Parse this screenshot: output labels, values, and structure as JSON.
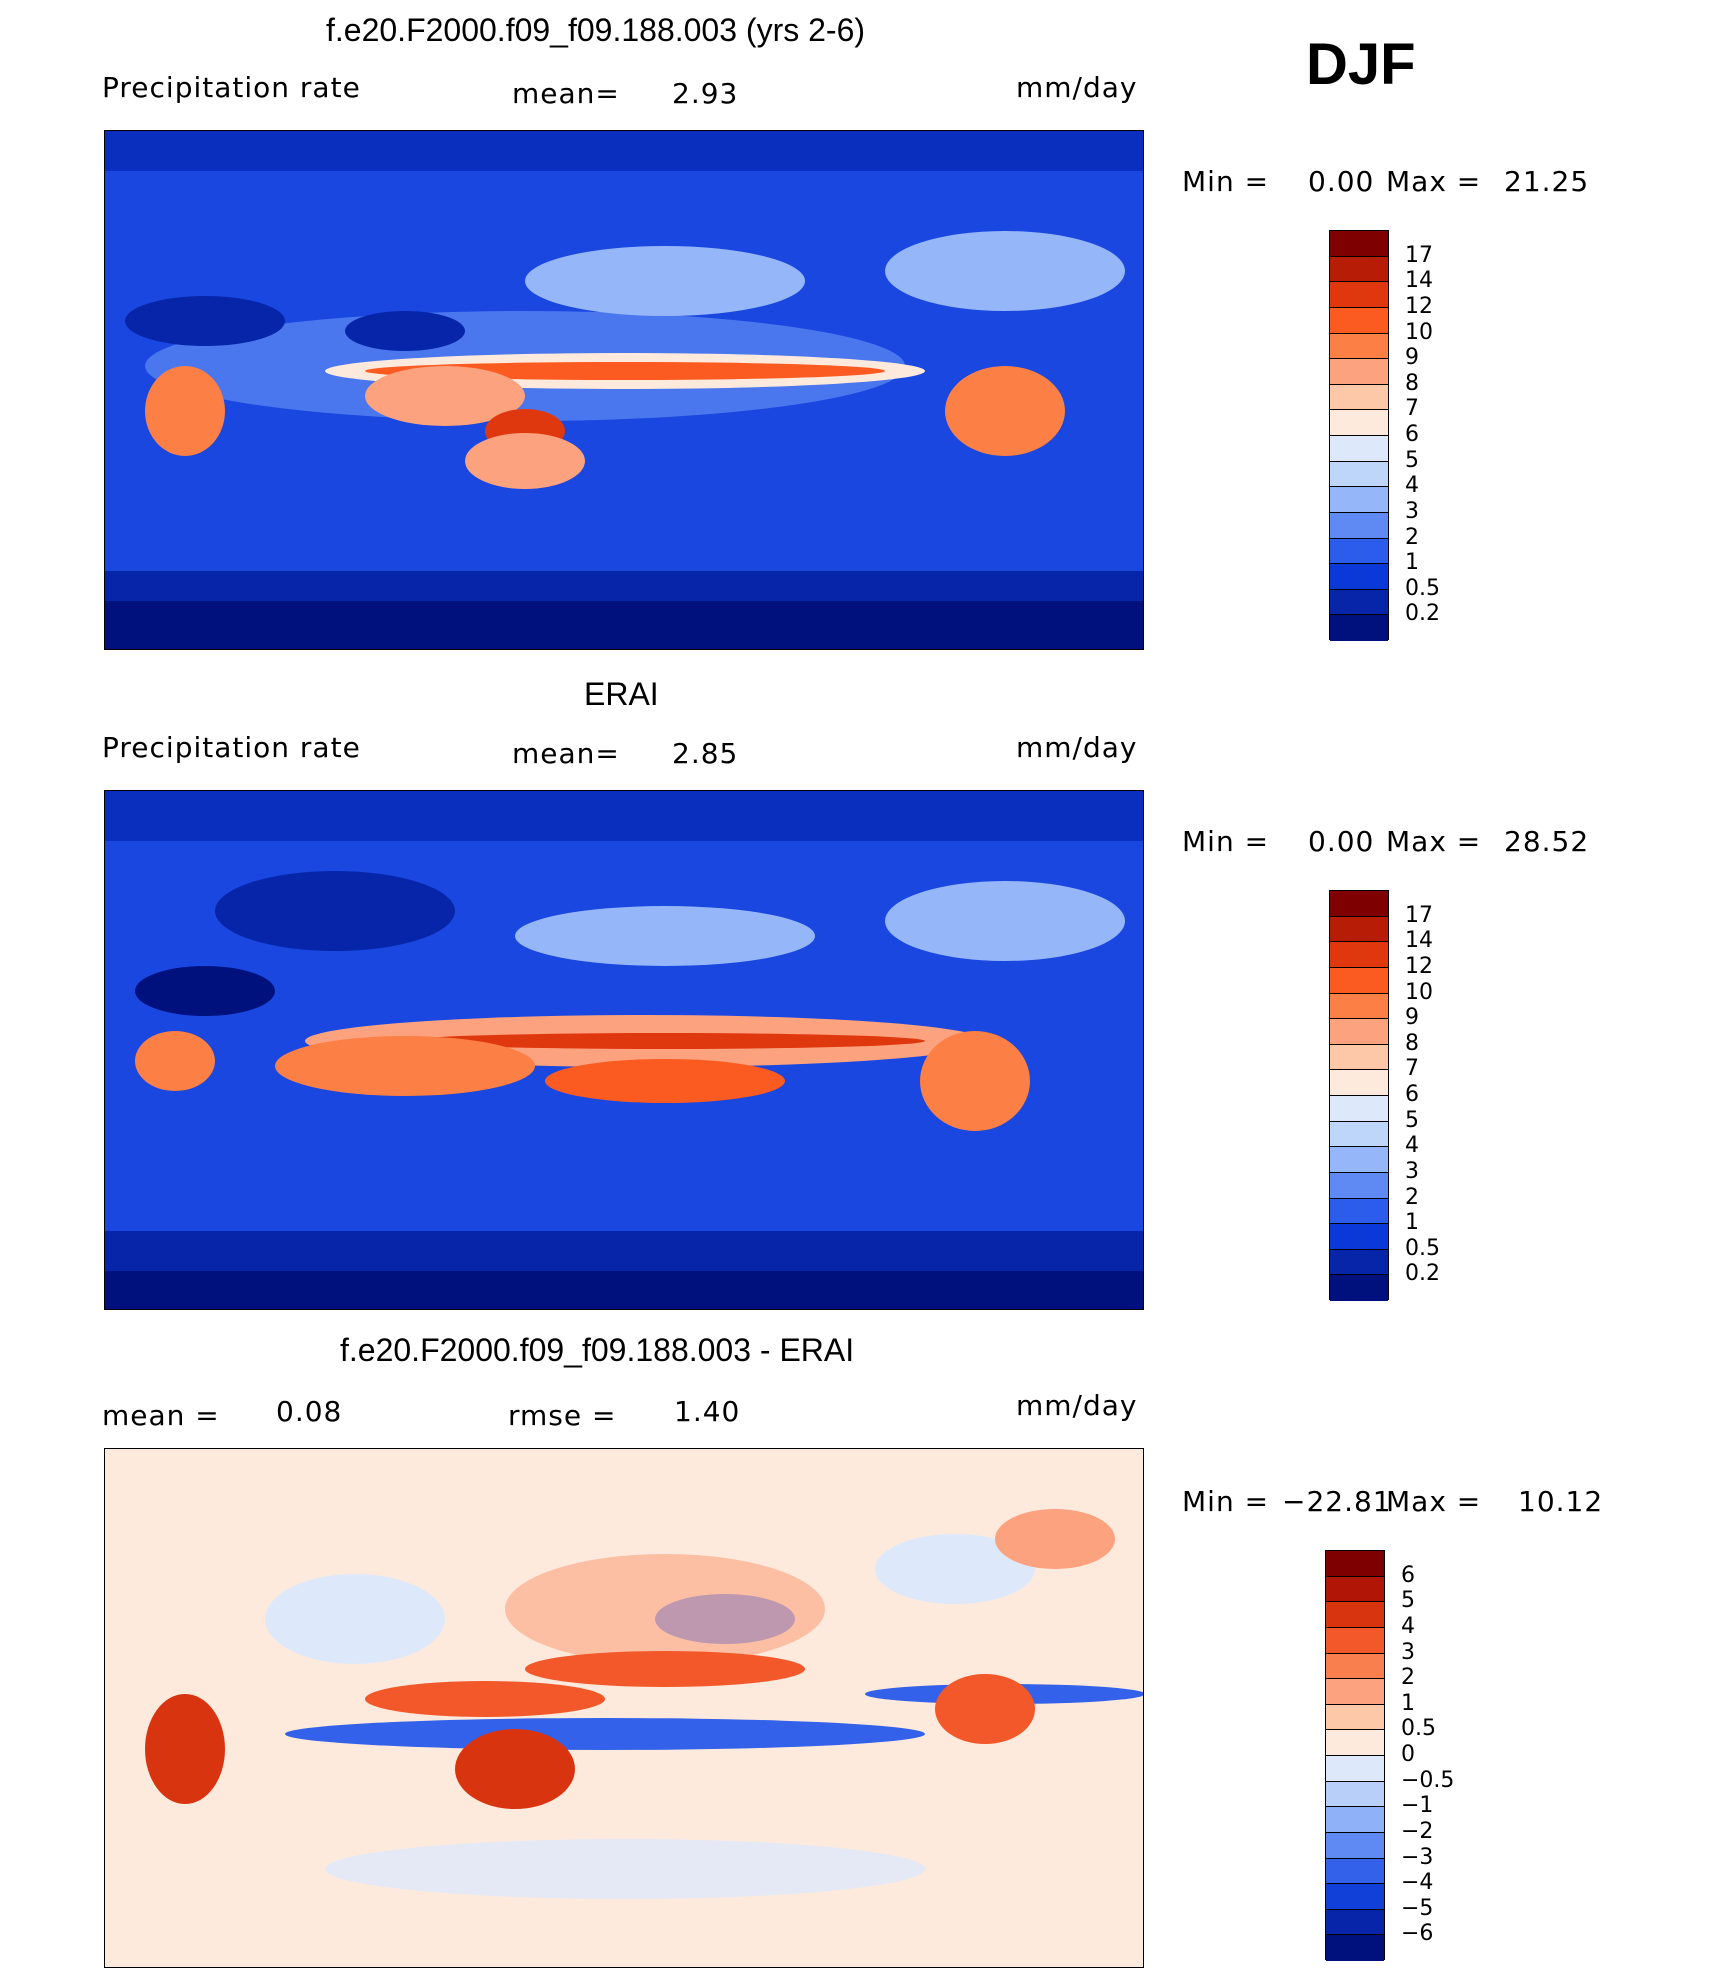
{
  "season": "DJF",
  "panels": [
    {
      "id": "model",
      "title": "f.e20.F2000.f09_f09.188.003 (yrs 2-6)",
      "left_label": "Precipitation  rate",
      "center_label": "mean=",
      "center_value": "2.93",
      "units": "mm/day",
      "min_label": "Min  =",
      "min_value": "0.00",
      "max_label": "Max  =",
      "max_value": "21.25",
      "colorbar": {
        "labels": [
          "17",
          "14",
          "12",
          "10",
          "9",
          "8",
          "7",
          "6",
          "5",
          "4",
          "3",
          "2",
          "1",
          "0.5",
          "0.2"
        ],
        "colors": [
          "#7f0000",
          "#b71c07",
          "#e0380e",
          "#fb5a20",
          "#fc7f45",
          "#fca27e",
          "#fdc8a8",
          "#feeadc",
          "#dde9fb",
          "#bfd6fb",
          "#95b6f9",
          "#5f8af4",
          "#2c5cec",
          "#0b39d8",
          "#0625a8",
          "#00107d"
        ]
      }
    },
    {
      "id": "obs",
      "title": "ERAI",
      "left_label": "Precipitation  rate",
      "center_label": "mean=",
      "center_value": "2.85",
      "units": "mm/day",
      "min_label": "Min  =",
      "min_value": "0.00",
      "max_label": "Max  =",
      "max_value": "28.52",
      "colorbar": {
        "labels": [
          "17",
          "14",
          "12",
          "10",
          "9",
          "8",
          "7",
          "6",
          "5",
          "4",
          "3",
          "2",
          "1",
          "0.5",
          "0.2"
        ],
        "colors": [
          "#7f0000",
          "#b71c07",
          "#e0380e",
          "#fb5a20",
          "#fc7f45",
          "#fca27e",
          "#fdc8a8",
          "#feeadc",
          "#dde9fb",
          "#bfd6fb",
          "#95b6f9",
          "#5f8af4",
          "#2c5cec",
          "#0b39d8",
          "#0625a8",
          "#00107d"
        ]
      }
    },
    {
      "id": "diff",
      "title": "f.e20.F2000.f09_f09.188.003 - ERAI",
      "left_label": "mean  =",
      "left_value": "0.08",
      "center_label": "rmse  =",
      "center_value": "1.40",
      "units": "mm/day",
      "min_label": "Min  =",
      "min_value": "−22.81",
      "max_label": "Max  =",
      "max_value": "10.12",
      "colorbar": {
        "labels": [
          "6",
          "5",
          "4",
          "3",
          "2",
          "1",
          "0.5",
          "0",
          "−0.5",
          "−1",
          "−2",
          "−3",
          "−4",
          "−5",
          "−6"
        ],
        "colors": [
          "#7f0000",
          "#b01506",
          "#d83410",
          "#f2582a",
          "#fa7f4e",
          "#fca27e",
          "#fdc8a8",
          "#feeadc",
          "#dde9fb",
          "#b7cff9",
          "#8fb1f7",
          "#5f8af4",
          "#3461ea",
          "#1040d8",
          "#0625a8",
          "#00107d"
        ]
      }
    }
  ]
}
